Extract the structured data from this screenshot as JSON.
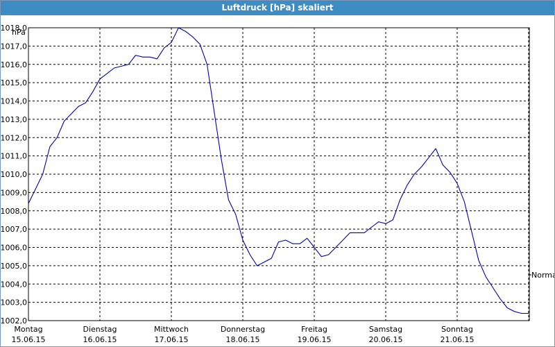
{
  "window": {
    "title": "Luftdruck [hPa] skaliert"
  },
  "chart_data": {
    "type": "line",
    "title": "Luftdruck [hPa] skaliert",
    "unit_label": "hPa",
    "ylim": [
      1002.0,
      1018.0
    ],
    "y_ticks": [
      "1002,0",
      "1003,0",
      "1004,0",
      "1005,0",
      "1006,0",
      "1007,0",
      "1008,0",
      "1009,0",
      "1010,0",
      "1011,0",
      "1012,0",
      "1013,0",
      "1014,0",
      "1015,0",
      "1016,0",
      "1017,0",
      "1018,0"
    ],
    "x_ticks": [
      {
        "day": "Montag",
        "date": "15.06.15"
      },
      {
        "day": "Dienstag",
        "date": "16.06.15"
      },
      {
        "day": "Mittwoch",
        "date": "17.06.15"
      },
      {
        "day": "Donnerstag",
        "date": "18.06.15"
      },
      {
        "day": "Freitag",
        "date": "19.06.15"
      },
      {
        "day": "Samstag",
        "date": "20.06.15"
      },
      {
        "day": "Sonntag",
        "date": "21.06.15"
      }
    ],
    "xlim": [
      0,
      7
    ],
    "grid": true,
    "annotation": {
      "label": "Normal",
      "value": 1004.5
    },
    "series": [
      {
        "color": "#0000aa",
        "x": [
          0.0,
          0.1,
          0.2,
          0.3,
          0.4,
          0.5,
          0.6,
          0.7,
          0.8,
          0.9,
          1.0,
          1.1,
          1.2,
          1.3,
          1.4,
          1.5,
          1.6,
          1.7,
          1.8,
          1.9,
          2.0,
          2.1,
          2.2,
          2.3,
          2.4,
          2.5,
          2.6,
          2.7,
          2.8,
          2.9,
          3.0,
          3.1,
          3.2,
          3.3,
          3.4,
          3.5,
          3.6,
          3.7,
          3.8,
          3.9,
          4.0,
          4.1,
          4.2,
          4.3,
          4.4,
          4.5,
          4.6,
          4.7,
          4.8,
          4.9,
          5.0,
          5.1,
          5.2,
          5.3,
          5.4,
          5.5,
          5.6,
          5.7,
          5.8,
          5.9,
          6.0,
          6.1,
          6.2,
          6.3,
          6.4,
          6.5,
          6.6,
          6.7,
          6.8,
          6.9,
          7.0
        ],
        "values": [
          1008.4,
          1009.2,
          1010.0,
          1011.5,
          1012.0,
          1012.9,
          1013.3,
          1013.7,
          1013.9,
          1014.5,
          1015.2,
          1015.5,
          1015.8,
          1015.9,
          1016.0,
          1016.5,
          1016.4,
          1016.4,
          1016.3,
          1016.9,
          1017.2,
          1018.0,
          1017.8,
          1017.5,
          1017.1,
          1016.0,
          1013.4,
          1010.8,
          1008.6,
          1007.8,
          1006.4,
          1005.6,
          1005.0,
          1005.2,
          1005.4,
          1006.3,
          1006.4,
          1006.2,
          1006.2,
          1006.5,
          1006.0,
          1005.5,
          1005.6,
          1006.0,
          1006.4,
          1006.8,
          1006.8,
          1006.8,
          1007.1,
          1007.4,
          1007.3,
          1007.5,
          1008.6,
          1009.4,
          1010.0,
          1010.4,
          1010.9,
          1011.4,
          1010.5,
          1010.1,
          1009.5,
          1008.5,
          1006.9,
          1005.3,
          1004.4,
          1003.8,
          1003.2,
          1002.7,
          1002.5,
          1002.4,
          1002.4
        ]
      }
    ]
  }
}
